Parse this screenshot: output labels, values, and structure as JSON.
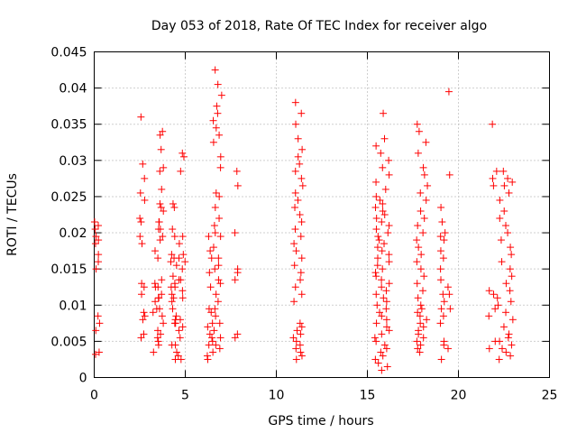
{
  "chart_data": {
    "type": "scatter",
    "title": "Day 053 of 2018, Rate Of TEC Index for receiver algo",
    "xlabel": "GPS time / hours",
    "ylabel": "ROTI / TECUs",
    "xlim": [
      0,
      25
    ],
    "ylim": [
      0,
      0.045
    ],
    "grid": true,
    "x_ticks": [
      0,
      5,
      10,
      15,
      20,
      25
    ],
    "x_tick_labels": [
      "0",
      "5",
      "10",
      "15",
      "20",
      "25"
    ],
    "y_ticks": [
      0,
      0.005,
      0.01,
      0.015,
      0.02,
      0.025,
      0.03,
      0.035,
      0.04,
      0.045
    ],
    "y_tick_labels": [
      "0",
      "0.005",
      "0.01",
      "0.015",
      "0.02",
      "0.025",
      "0.03",
      "0.035",
      "0.04",
      "0.045"
    ],
    "marker": "+",
    "marker_color": "#ff0000",
    "series": [
      {
        "name": "ROTI",
        "clusters": [
          {
            "x_start": 0.0,
            "x_end": 0.3,
            "y": [
              0.0032,
              0.0035,
              0.0065,
              0.0075,
              0.0085,
              0.015,
              0.016,
              0.017,
              0.0185,
              0.019,
              0.0195,
              0.0205,
              0.021,
              0.0215
            ]
          },
          {
            "x_start": 2.5,
            "x_end": 2.8,
            "y": [
              0.0055,
              0.006,
              0.008,
              0.0085,
              0.009,
              0.0115,
              0.0125,
              0.013,
              0.0185,
              0.0195,
              0.0215,
              0.022,
              0.0245,
              0.0255,
              0.0275,
              0.0295,
              0.036
            ]
          },
          {
            "x_start": 3.2,
            "x_end": 3.6,
            "y": [
              0.0035,
              0.0055,
              0.0065,
              0.009,
              0.0095,
              0.0105,
              0.011,
              0.0125,
              0.013,
              0.0165,
              0.0175,
              0.0205,
              0.0215
            ]
          },
          {
            "x_start": 3.5,
            "x_end": 3.8,
            "y": [
              0.0045,
              0.005,
              0.006,
              0.0075,
              0.0085,
              0.0095,
              0.011,
              0.0115,
              0.0125,
              0.0135,
              0.019,
              0.0195,
              0.0205,
              0.0215,
              0.023,
              0.0235,
              0.024,
              0.026,
              0.0285,
              0.029,
              0.0315,
              0.0335,
              0.034
            ]
          },
          {
            "x_start": 4.2,
            "x_end": 4.5,
            "y": [
              0.0045,
              0.0075,
              0.0095,
              0.0105,
              0.011,
              0.0115,
              0.0125,
              0.013,
              0.014,
              0.016,
              0.0165,
              0.017,
              0.0195,
              0.0205,
              0.0235,
              0.024
            ]
          },
          {
            "x_start": 4.4,
            "x_end": 4.7,
            "y": [
              0.0025,
              0.003,
              0.0035,
              0.0045,
              0.0065,
              0.0075,
              0.008,
              0.0085,
              0.0125,
              0.0135,
              0.0155,
              0.0165,
              0.0185
            ]
          },
          {
            "x_start": 4.7,
            "x_end": 5.0,
            "y": [
              0.0025,
              0.0055,
              0.007,
              0.008,
              0.011,
              0.012,
              0.0135,
              0.015,
              0.016,
              0.017,
              0.0195,
              0.0285,
              0.0305,
              0.031
            ]
          },
          {
            "x_start": 6.2,
            "x_end": 6.5,
            "y": [
              0.0025,
              0.003,
              0.0045,
              0.0055,
              0.006,
              0.007,
              0.0075,
              0.009,
              0.0095,
              0.0125,
              0.0145,
              0.0165,
              0.0175,
              0.0195
            ]
          },
          {
            "x_start": 6.5,
            "x_end": 7.0,
            "y": [
              0.0035,
              0.004,
              0.0045,
              0.005,
              0.0055,
              0.0065,
              0.0075,
              0.0085,
              0.0095,
              0.0105,
              0.0115,
              0.013,
              0.0135,
              0.015,
              0.0155,
              0.0165,
              0.018,
              0.0195,
              0.02,
              0.021,
              0.022,
              0.0235,
              0.025,
              0.0255,
              0.029,
              0.0305,
              0.0325,
              0.0335,
              0.0345,
              0.0355,
              0.0365,
              0.0375,
              0.039,
              0.0405,
              0.0425
            ]
          },
          {
            "x_start": 7.6,
            "x_end": 7.9,
            "y": [
              0.0055,
              0.006,
              0.0135,
              0.0145,
              0.015,
              0.02,
              0.0265,
              0.0285
            ]
          },
          {
            "x_start": 10.9,
            "x_end": 11.5,
            "y": [
              0.0025,
              0.003,
              0.0035,
              0.004,
              0.0045,
              0.005,
              0.0055,
              0.006,
              0.0065,
              0.007,
              0.0075,
              0.0105,
              0.0115,
              0.0125,
              0.0135,
              0.0145,
              0.0155,
              0.0165,
              0.0175,
              0.0185,
              0.0195,
              0.0205,
              0.0215,
              0.0225,
              0.0235,
              0.0245,
              0.0255,
              0.0265,
              0.0275,
              0.0285,
              0.0295,
              0.0305,
              0.0315,
              0.033,
              0.035,
              0.0365,
              0.038
            ]
          },
          {
            "x_start": 15.4,
            "x_end": 16.2,
            "y": [
              0.001,
              0.0015,
              0.002,
              0.0025,
              0.003,
              0.0035,
              0.004,
              0.0045,
              0.005,
              0.0055,
              0.006,
              0.0065,
              0.007,
              0.0075,
              0.008,
              0.0085,
              0.009,
              0.0095,
              0.01,
              0.0105,
              0.011,
              0.0115,
              0.012,
              0.0125,
              0.013,
              0.0135,
              0.014,
              0.0145,
              0.015,
              0.0155,
              0.016,
              0.0165,
              0.017,
              0.0175,
              0.018,
              0.0185,
              0.019,
              0.0195,
              0.02,
              0.0205,
              0.021,
              0.0215,
              0.022,
              0.0225,
              0.023,
              0.0235,
              0.024,
              0.0245,
              0.025,
              0.026,
              0.027,
              0.028,
              0.029,
              0.03,
              0.031,
              0.032,
              0.033,
              0.0365
            ]
          },
          {
            "x_start": 17.7,
            "x_end": 18.3,
            "y": [
              0.0035,
              0.004,
              0.0045,
              0.005,
              0.0055,
              0.006,
              0.0065,
              0.007,
              0.0075,
              0.008,
              0.0085,
              0.009,
              0.0095,
              0.01,
              0.011,
              0.012,
              0.013,
              0.014,
              0.015,
              0.016,
              0.017,
              0.018,
              0.019,
              0.02,
              0.021,
              0.022,
              0.023,
              0.0245,
              0.0255,
              0.0265,
              0.028,
              0.029,
              0.031,
              0.0325,
              0.034,
              0.035
            ]
          },
          {
            "x_start": 19.0,
            "x_end": 19.3,
            "y": [
              0.0025,
              0.0045,
              0.005,
              0.0075,
              0.0085,
              0.0095,
              0.0105,
              0.0115,
              0.0135,
              0.015,
              0.0165,
              0.0175,
              0.019,
              0.0195,
              0.02,
              0.0215,
              0.0235
            ]
          },
          {
            "x_start": 19.4,
            "x_end": 19.6,
            "y": [
              0.004,
              0.0095,
              0.0115,
              0.0125,
              0.028,
              0.0395
            ]
          },
          {
            "x_start": 21.5,
            "x_end": 22.1,
            "y": [
              0.004,
              0.005,
              0.0085,
              0.0095,
              0.0115,
              0.012,
              0.0265,
              0.0275,
              0.0285,
              0.035
            ]
          },
          {
            "x_start": 22.1,
            "x_end": 23.0,
            "y": [
              0.0025,
              0.003,
              0.0035,
              0.004,
              0.0045,
              0.005,
              0.0055,
              0.006,
              0.007,
              0.008,
              0.009,
              0.01,
              0.0105,
              0.011,
              0.012,
              0.013,
              0.014,
              0.015,
              0.016,
              0.017,
              0.018,
              0.019,
              0.02,
              0.021,
              0.022,
              0.023,
              0.0245,
              0.0255,
              0.0265,
              0.027,
              0.0275,
              0.0285
            ]
          }
        ]
      }
    ]
  }
}
